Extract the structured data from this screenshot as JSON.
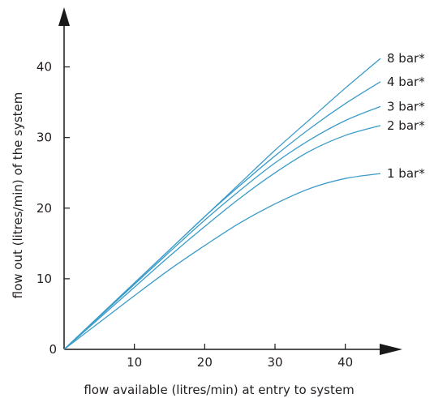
{
  "chart_data": {
    "type": "line",
    "title": "",
    "xlabel": "flow available (litres/min) at entry to system",
    "ylabel": "flow out (litres/min) of the system",
    "xlim": [
      0,
      45
    ],
    "ylim": [
      0,
      45
    ],
    "x_ticks": [
      10,
      20,
      30,
      40
    ],
    "y_ticks": [
      0,
      10,
      20,
      30,
      40
    ],
    "grid": false,
    "legend": "inline-right",
    "line_color": "#3a9cc9",
    "axis_color": "#1a1a1a",
    "x": [
      0,
      5,
      10,
      15,
      20,
      25,
      30,
      35,
      40,
      45
    ],
    "series": [
      {
        "name": "8 bar*",
        "values": [
          0,
          4.7,
          9.4,
          14.1,
          18.8,
          23.5,
          28.2,
          32.6,
          37.0,
          41.2
        ]
      },
      {
        "name": "4 bar*",
        "values": [
          0,
          4.7,
          9.4,
          14.1,
          18.8,
          23.2,
          27.4,
          31.3,
          34.8,
          37.9
        ]
      },
      {
        "name": "3 bar*",
        "values": [
          0,
          4.6,
          9.2,
          13.8,
          18.3,
          22.5,
          26.4,
          29.7,
          32.4,
          34.4
        ]
      },
      {
        "name": "2 bar*",
        "values": [
          0,
          4.4,
          8.8,
          13.2,
          17.4,
          21.4,
          25.0,
          28.1,
          30.3,
          31.7
        ]
      },
      {
        "name": "1 bar*",
        "values": [
          0,
          3.8,
          7.6,
          11.3,
          14.7,
          17.9,
          20.6,
          22.8,
          24.2,
          24.9
        ]
      }
    ]
  }
}
